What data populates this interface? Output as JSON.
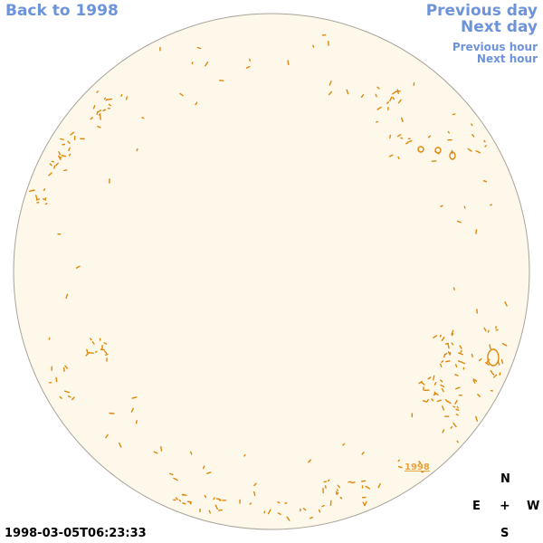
{
  "navigation": {
    "back_link": "Back to 1998",
    "previous_day": "Previous day",
    "next_day": "Next day",
    "previous_hour": "Previous hour",
    "next_hour": "Next hour"
  },
  "disk": {
    "fill_color": "#fdf8ea",
    "outline_color": "#a9a39a",
    "contour_color": "#e0870a",
    "year_link": "1998"
  },
  "compass": {
    "north": "N",
    "east": "E",
    "center": "+",
    "west": "W",
    "south": "S"
  },
  "timestamp": "1998-03-05T06:23:33"
}
